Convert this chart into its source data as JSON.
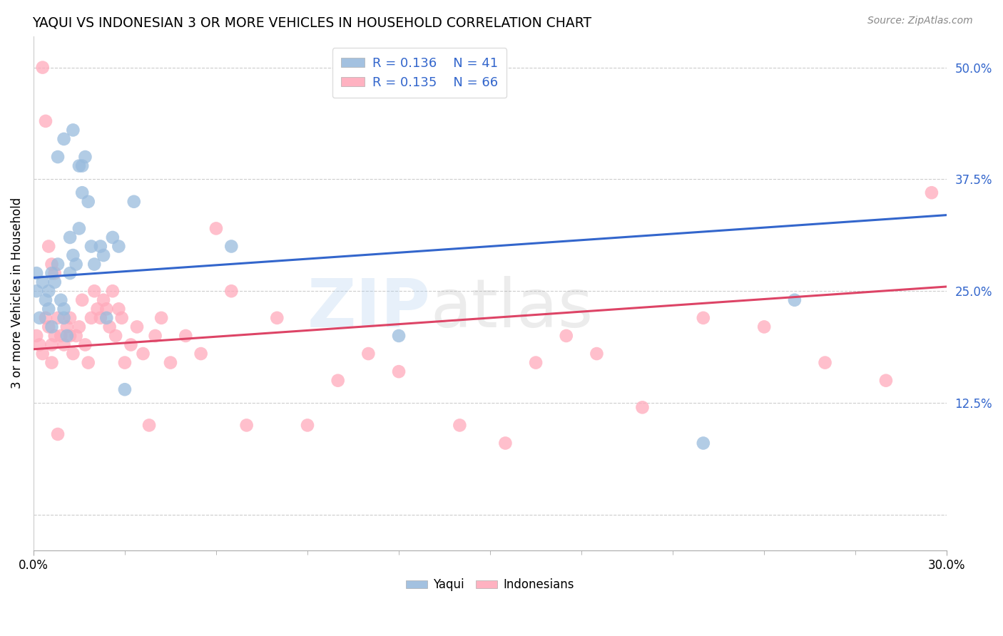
{
  "title": "YAQUI VS INDONESIAN 3 OR MORE VEHICLES IN HOUSEHOLD CORRELATION CHART",
  "source": "Source: ZipAtlas.com",
  "ylabel": "3 or more Vehicles in Household",
  "ytick_values": [
    0.0,
    0.125,
    0.25,
    0.375,
    0.5
  ],
  "ytick_labels": [
    "",
    "12.5%",
    "25.0%",
    "37.5%",
    "50.0%"
  ],
  "xmin": 0.0,
  "xmax": 0.3,
  "ymin": -0.04,
  "ymax": 0.535,
  "legend_R1": "R = 0.136",
  "legend_N1": "N = 41",
  "legend_R2": "R = 0.135",
  "legend_N2": "N = 66",
  "blue_color": "#99BBDD",
  "pink_color": "#FFAABB",
  "line_blue": "#3366CC",
  "line_pink": "#DD4466",
  "blue_line_y0": 0.265,
  "blue_line_y1": 0.335,
  "pink_line_y0": 0.185,
  "pink_line_y1": 0.255,
  "yaqui_x": [
    0.001,
    0.001,
    0.002,
    0.003,
    0.004,
    0.005,
    0.005,
    0.006,
    0.006,
    0.007,
    0.008,
    0.009,
    0.01,
    0.01,
    0.011,
    0.012,
    0.012,
    0.013,
    0.014,
    0.015,
    0.015,
    0.016,
    0.016,
    0.017,
    0.018,
    0.019,
    0.02,
    0.022,
    0.023,
    0.024,
    0.026,
    0.028,
    0.03,
    0.033,
    0.065,
    0.12,
    0.22,
    0.25,
    0.008,
    0.01,
    0.013
  ],
  "yaqui_y": [
    0.27,
    0.25,
    0.22,
    0.26,
    0.24,
    0.25,
    0.23,
    0.21,
    0.27,
    0.26,
    0.28,
    0.24,
    0.23,
    0.22,
    0.2,
    0.27,
    0.31,
    0.29,
    0.28,
    0.32,
    0.39,
    0.36,
    0.39,
    0.4,
    0.35,
    0.3,
    0.28,
    0.3,
    0.29,
    0.22,
    0.31,
    0.3,
    0.14,
    0.35,
    0.3,
    0.2,
    0.08,
    0.24,
    0.4,
    0.42,
    0.43
  ],
  "indonesian_x": [
    0.001,
    0.002,
    0.003,
    0.004,
    0.005,
    0.006,
    0.006,
    0.007,
    0.008,
    0.009,
    0.01,
    0.011,
    0.012,
    0.012,
    0.013,
    0.014,
    0.015,
    0.016,
    0.017,
    0.018,
    0.019,
    0.02,
    0.021,
    0.022,
    0.023,
    0.024,
    0.025,
    0.026,
    0.027,
    0.028,
    0.029,
    0.03,
    0.032,
    0.034,
    0.036,
    0.038,
    0.04,
    0.042,
    0.045,
    0.05,
    0.055,
    0.06,
    0.065,
    0.07,
    0.08,
    0.09,
    0.1,
    0.11,
    0.12,
    0.14,
    0.155,
    0.165,
    0.175,
    0.185,
    0.2,
    0.22,
    0.24,
    0.26,
    0.28,
    0.295,
    0.003,
    0.004,
    0.005,
    0.006,
    0.007,
    0.008
  ],
  "indonesian_y": [
    0.2,
    0.19,
    0.18,
    0.22,
    0.21,
    0.19,
    0.17,
    0.2,
    0.22,
    0.2,
    0.19,
    0.21,
    0.2,
    0.22,
    0.18,
    0.2,
    0.21,
    0.24,
    0.19,
    0.17,
    0.22,
    0.25,
    0.23,
    0.22,
    0.24,
    0.23,
    0.21,
    0.25,
    0.2,
    0.23,
    0.22,
    0.17,
    0.19,
    0.21,
    0.18,
    0.1,
    0.2,
    0.22,
    0.17,
    0.2,
    0.18,
    0.32,
    0.25,
    0.1,
    0.22,
    0.1,
    0.15,
    0.18,
    0.16,
    0.1,
    0.08,
    0.17,
    0.2,
    0.18,
    0.12,
    0.22,
    0.21,
    0.17,
    0.15,
    0.36,
    0.5,
    0.44,
    0.3,
    0.28,
    0.27,
    0.09
  ]
}
